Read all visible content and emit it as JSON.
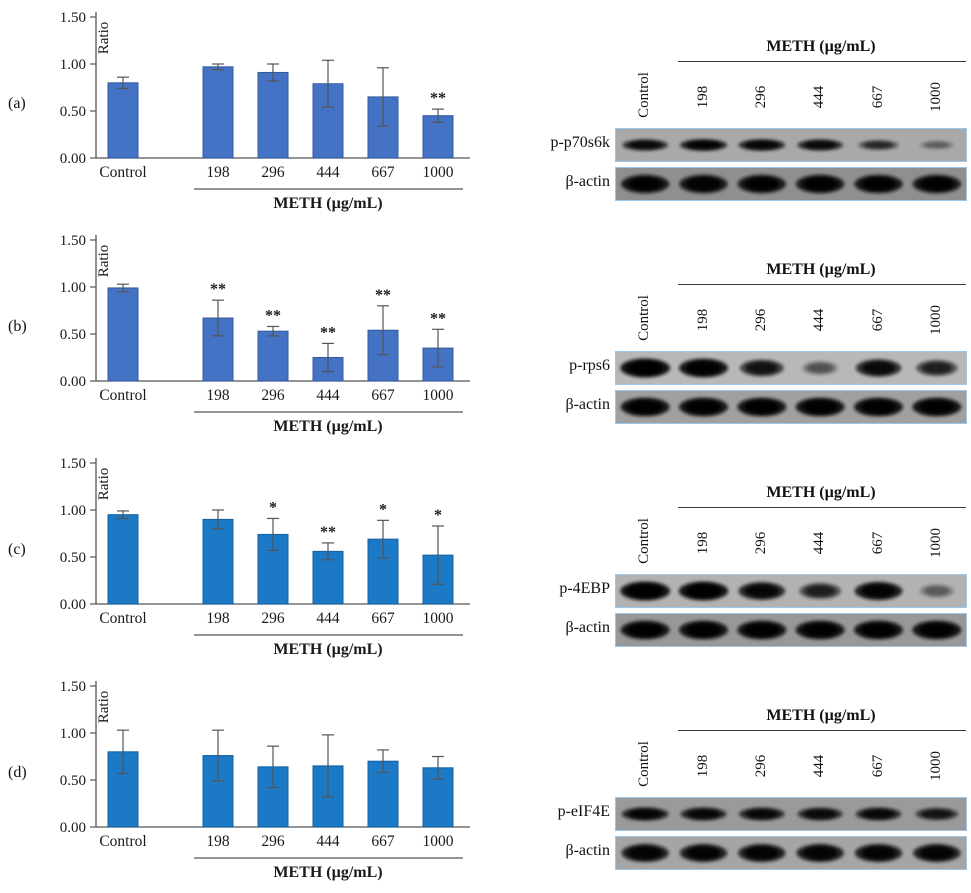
{
  "figure": {
    "background": "#ffffff",
    "blot_border_color": "#9fc5e8"
  },
  "blot": {
    "control_label": "Control",
    "meth_label": "METH (µg/mL)",
    "doses": [
      "198",
      "296",
      "444",
      "667",
      "1000"
    ],
    "beta_actin_label": "β-actin"
  },
  "panels": [
    {
      "protein_label": "p-p70s6k",
      "strip_bg": "#a9a9a9",
      "actin_bg": "#8f8f8f",
      "band_ry": 6,
      "band_intensities": [
        0.8,
        0.88,
        0.85,
        0.8,
        0.55,
        0.28
      ],
      "actin_intensities": [
        0.92,
        0.92,
        0.92,
        0.92,
        0.92,
        0.92
      ]
    },
    {
      "protein_label": "p-rps6",
      "strip_bg": "#b8b8b8",
      "actin_bg": "#a0a0a0",
      "band_ry": 9.5,
      "band_intensities": [
        0.98,
        0.95,
        0.72,
        0.35,
        0.8,
        0.62
      ],
      "actin_intensities": [
        0.95,
        0.95,
        0.95,
        0.95,
        0.95,
        0.95
      ]
    },
    {
      "protein_label": "p-4EBP",
      "strip_bg": "#b2b2b2",
      "actin_bg": "#989898",
      "band_ry": 9.5,
      "band_intensities": [
        0.98,
        0.97,
        0.85,
        0.62,
        0.9,
        0.3
      ],
      "actin_intensities": [
        0.95,
        0.95,
        0.95,
        0.95,
        0.95,
        0.95
      ]
    },
    {
      "protein_label": "p-eIF4E",
      "strip_bg": "#9a9a9a",
      "actin_bg": "#a5a5a5",
      "band_ry": 7,
      "band_intensities": [
        0.85,
        0.82,
        0.8,
        0.78,
        0.8,
        0.68
      ],
      "actin_intensities": [
        0.88,
        0.88,
        0.88,
        0.88,
        0.88,
        0.88
      ]
    }
  ],
  "chart_data": [
    {
      "type": "bar",
      "panel": "(a)",
      "protein": "p-p70s6k",
      "categories": [
        "Control",
        "198",
        "296",
        "444",
        "667",
        "1000"
      ],
      "values": [
        0.8,
        0.97,
        0.91,
        0.79,
        0.65,
        0.45
      ],
      "errors": [
        0.06,
        0.03,
        0.09,
        0.25,
        0.31,
        0.07
      ],
      "significance": [
        "",
        "",
        "",
        "",
        "",
        "**"
      ],
      "xlabel": "METH (µg/mL)",
      "ylabel": "Ratio",
      "ylim": [
        0,
        1.5
      ],
      "yticks": [
        0,
        0.5,
        1,
        1.5
      ],
      "bar_color": "#4472c4",
      "bar_edge": "#35599a"
    },
    {
      "type": "bar",
      "panel": "(b)",
      "protein": "p-rps6",
      "categories": [
        "Control",
        "198",
        "296",
        "444",
        "667",
        "1000"
      ],
      "values": [
        0.99,
        0.67,
        0.53,
        0.25,
        0.54,
        0.35
      ],
      "errors": [
        0.04,
        0.19,
        0.05,
        0.15,
        0.26,
        0.2
      ],
      "significance": [
        "",
        "**",
        "**",
        "**",
        "**",
        "**"
      ],
      "xlabel": "METH (µg/mL)",
      "ylabel": "Ratio",
      "ylim": [
        0,
        1.5
      ],
      "yticks": [
        0,
        0.5,
        1,
        1.5
      ],
      "bar_color": "#4472c4",
      "bar_edge": "#35599a"
    },
    {
      "type": "bar",
      "panel": "(c)",
      "protein": "p-4EBP",
      "categories": [
        "Control",
        "198",
        "296",
        "444",
        "667",
        "1000"
      ],
      "values": [
        0.95,
        0.9,
        0.74,
        0.56,
        0.69,
        0.52
      ],
      "errors": [
        0.04,
        0.1,
        0.17,
        0.09,
        0.2,
        0.31
      ],
      "significance": [
        "",
        "",
        "*",
        "**",
        "*",
        "*"
      ],
      "xlabel": "METH (µg/mL)",
      "ylabel": "Ratio",
      "ylim": [
        0,
        1.5
      ],
      "yticks": [
        0,
        0.5,
        1,
        1.5
      ],
      "bar_color": "#1b79c6",
      "bar_edge": "#13609f"
    },
    {
      "type": "bar",
      "panel": "(d)",
      "protein": "p-eIF4E",
      "categories": [
        "Control",
        "198",
        "296",
        "444",
        "667",
        "1000"
      ],
      "values": [
        0.8,
        0.76,
        0.64,
        0.65,
        0.7,
        0.63
      ],
      "errors": [
        0.23,
        0.27,
        0.22,
        0.33,
        0.12,
        0.12
      ],
      "significance": [
        "",
        "",
        "",
        "",
        "",
        ""
      ],
      "xlabel": "METH (µg/mL)",
      "ylabel": "Ratio",
      "ylim": [
        0,
        1.5
      ],
      "yticks": [
        0,
        0.5,
        1,
        1.5
      ],
      "bar_color": "#1b79c6",
      "bar_edge": "#13609f"
    }
  ]
}
